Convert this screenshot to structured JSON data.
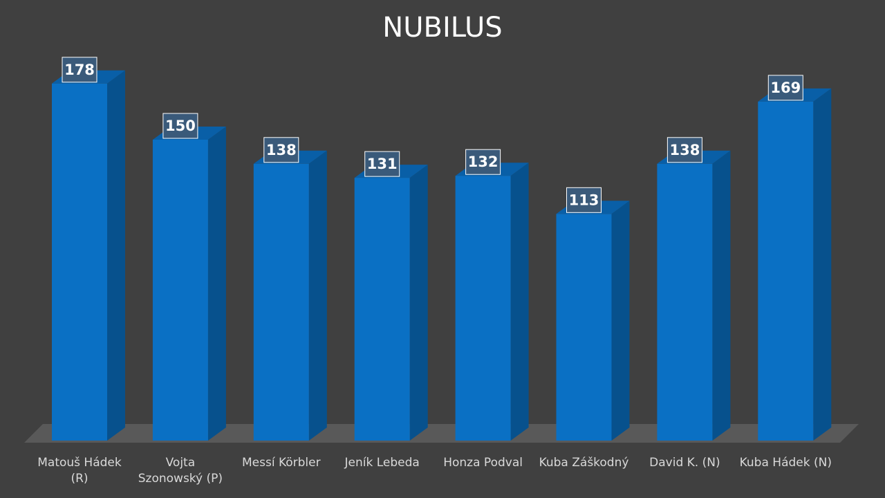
{
  "chart_data": {
    "type": "bar3d",
    "title": "NUBILUS",
    "categories": [
      "Matouš Hádek (R)",
      "Vojta Szonowský (P)",
      "Messí Körbler",
      "Jeník Lebeda",
      "Honza Podval",
      "Kuba Záškodný",
      "David K. (N)",
      "Kuba Hádek (N)"
    ],
    "values": [
      178,
      150,
      138,
      131,
      132,
      113,
      138,
      169
    ],
    "color": "#0a70c4"
  }
}
